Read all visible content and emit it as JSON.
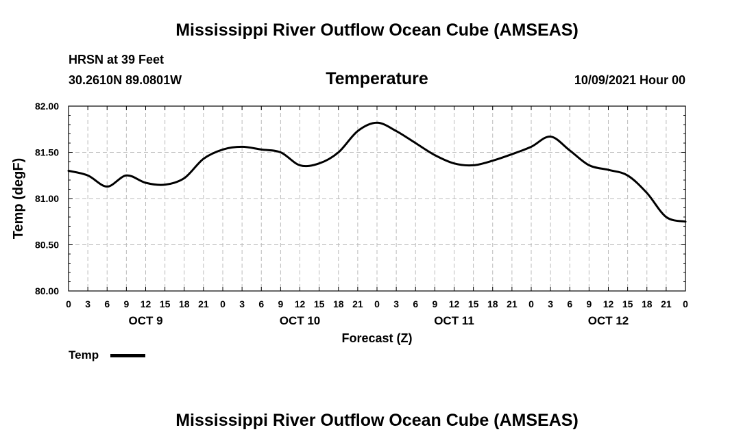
{
  "header": {
    "title": "Mississippi River Outflow Ocean Cube (AMSEAS)",
    "station": "HRSN at 39 Feet",
    "coords": "30.2610N  89.0801W",
    "chart_title": "Temperature",
    "datetime": "10/09/2021 Hour 00"
  },
  "footer": {
    "title": "Mississippi River Outflow Ocean Cube (AMSEAS)"
  },
  "legend": {
    "label": "Temp",
    "color": "#000000"
  },
  "chart_data": {
    "type": "line",
    "title": "Temperature",
    "xlabel": "Forecast (Z)",
    "ylabel": "Temp (degF)",
    "ylim": [
      80.0,
      82.0
    ],
    "xlim": [
      0,
      96
    ],
    "yticks": [
      "80.00",
      "80.50",
      "81.00",
      "81.50",
      "82.00"
    ],
    "yticks_values": [
      80.0,
      80.5,
      81.0,
      81.5,
      82.0
    ],
    "xtick_labels": [
      "0",
      "3",
      "6",
      "9",
      "12",
      "15",
      "18",
      "21",
      "0",
      "3",
      "6",
      "9",
      "12",
      "15",
      "18",
      "21",
      "0",
      "3",
      "6",
      "9",
      "12",
      "15",
      "18",
      "21",
      "0",
      "3",
      "6",
      "9",
      "12",
      "15",
      "18",
      "21",
      "0"
    ],
    "day_labels": [
      {
        "hour": 12,
        "label": "OCT 9"
      },
      {
        "hour": 36,
        "label": "OCT 10"
      },
      {
        "hour": 60,
        "label": "OCT 11"
      },
      {
        "hour": 84,
        "label": "OCT 12"
      }
    ],
    "grid": true,
    "series": [
      {
        "name": "Temp",
        "x": [
          0,
          3,
          6,
          9,
          12,
          15,
          18,
          21,
          24,
          27,
          30,
          33,
          36,
          39,
          42,
          45,
          48,
          51,
          54,
          57,
          60,
          63,
          66,
          69,
          72,
          75,
          78,
          81,
          84,
          87,
          90,
          93,
          96
        ],
        "values": [
          81.3,
          81.25,
          81.13,
          81.25,
          81.17,
          81.15,
          81.22,
          81.43,
          81.53,
          81.56,
          81.53,
          81.5,
          81.36,
          81.38,
          81.5,
          81.73,
          81.82,
          81.73,
          81.6,
          81.47,
          81.38,
          81.36,
          81.41,
          81.48,
          81.56,
          81.67,
          81.52,
          81.36,
          81.31,
          81.25,
          81.06,
          80.8,
          80.75
        ]
      }
    ]
  }
}
